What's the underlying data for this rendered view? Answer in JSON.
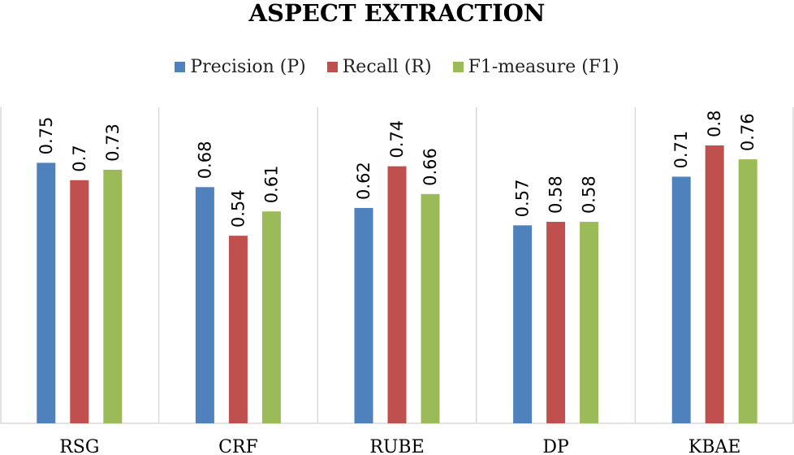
{
  "chart_data": {
    "type": "bar",
    "title": "ASPECT EXTRACTION",
    "xlabel": "",
    "ylabel": "",
    "categories": [
      "RSG",
      "CRF",
      "RUBE",
      "DP",
      "KBAE"
    ],
    "series": [
      {
        "name": "Precision (P)",
        "color": "#4f81bd",
        "values": [
          0.75,
          0.68,
          0.62,
          0.57,
          0.71
        ]
      },
      {
        "name": "Recall (R)",
        "color": "#c0504d",
        "values": [
          0.7,
          0.54,
          0.74,
          0.58,
          0.8
        ]
      },
      {
        "name": "F1-measure (F1)",
        "color": "#9bbb59",
        "values": [
          0.73,
          0.61,
          0.66,
          0.58,
          0.76
        ]
      }
    ],
    "ylim": [
      0,
      0.8
    ],
    "data_labels": true,
    "data_label_rotation": "vertical",
    "legend_position": "top",
    "grid": false,
    "category_separators": true
  }
}
